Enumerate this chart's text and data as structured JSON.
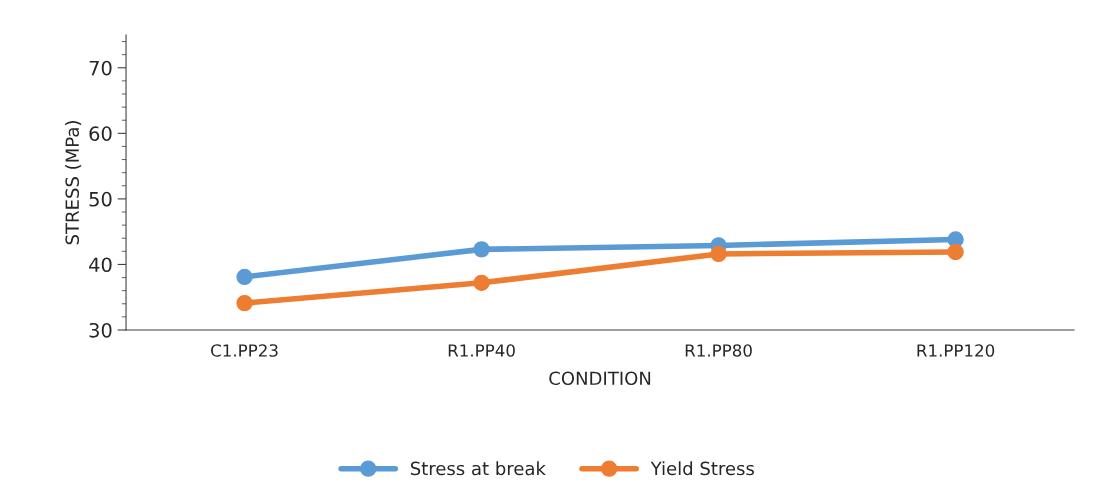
{
  "chart_data": {
    "type": "line",
    "xlabel": "CONDITION",
    "ylabel": "STRESS (MPa)",
    "categories": [
      "C1.PP23",
      "R1.PP40",
      "R1.PP80",
      "R1.PP120"
    ],
    "series": [
      {
        "name": "Stress at break",
        "color": "#5b9bd5",
        "values": [
          38.1,
          42.3,
          42.9,
          43.8
        ]
      },
      {
        "name": "Yield Stress",
        "color": "#ed7d31",
        "values": [
          34.1,
          37.2,
          41.6,
          41.9
        ]
      }
    ],
    "ylim": [
      30,
      75
    ],
    "yticks": [
      30,
      40,
      50,
      60,
      70
    ],
    "grid": false,
    "legend": "bottom",
    "marker": "circle",
    "line_style": "solid"
  }
}
